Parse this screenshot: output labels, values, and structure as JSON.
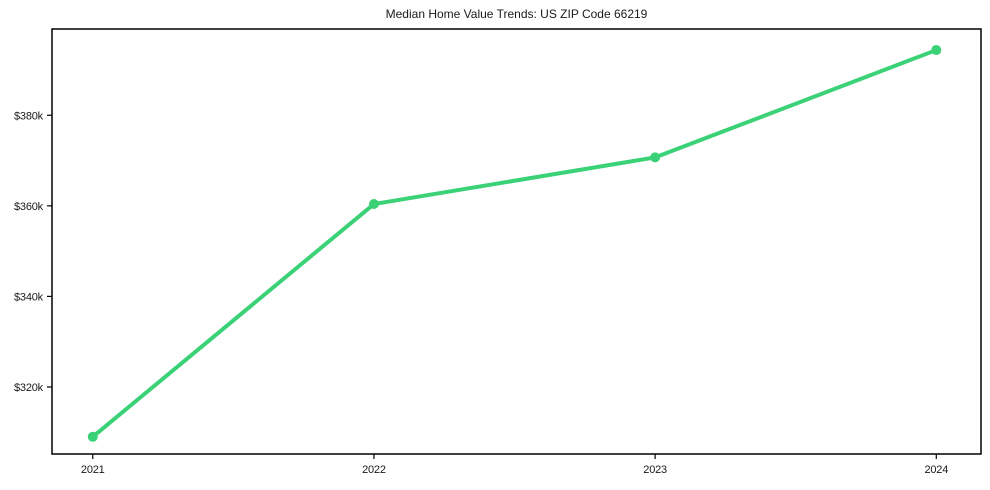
{
  "chart_data": {
    "type": "line",
    "title": "Median Home Value Trends: US ZIP Code 66219",
    "xlabel": "",
    "ylabel": "",
    "x": [
      2021,
      2022,
      2023,
      2024
    ],
    "x_tick_labels": [
      "2021",
      "2022",
      "2023",
      "2024"
    ],
    "series": [
      {
        "name": "Median Home Value",
        "values": [
          309000,
          360400,
          370700,
          394400
        ]
      }
    ],
    "y_ticks": [
      {
        "value": 320000,
        "label": "$320k"
      },
      {
        "value": 340000,
        "label": "$340k"
      },
      {
        "value": 360000,
        "label": "$360k"
      },
      {
        "value": 380000,
        "label": "$380k"
      }
    ],
    "xlim": [
      2020.855,
      2024.159
    ],
    "ylim": [
      305200,
      399050
    ],
    "grid": false,
    "legend_position": "none",
    "line_color": "#3bd277",
    "marker": "circle",
    "marker_radius": 5,
    "line_width": 4,
    "axis_color": "#000000",
    "text_color": "#1a1a1a",
    "background": "#ffffff"
  }
}
